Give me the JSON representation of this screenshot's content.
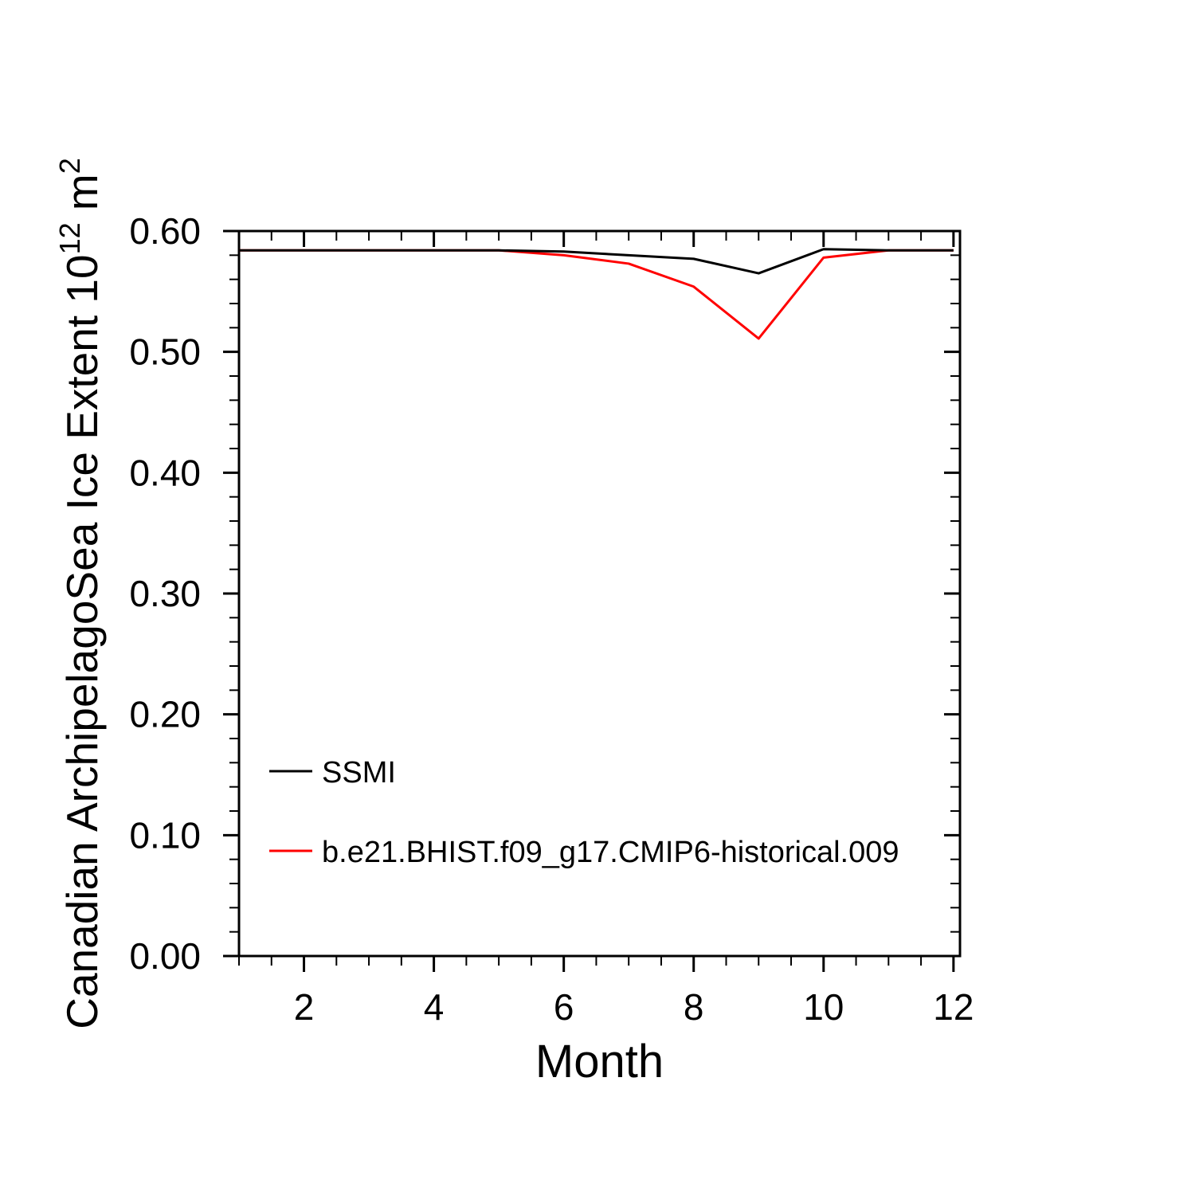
{
  "figure": {
    "background": "#ffffff"
  },
  "chart_data": {
    "type": "line",
    "title": "",
    "xlabel": "Month",
    "ylabel": "Canadian ArchipelagoSea Ice Extent 10¹² m²",
    "ylabel_segments": [
      {
        "text": "Canadian ArchipelagoSea Ice Extent 10",
        "sup": false
      },
      {
        "text": "12",
        "sup": true
      },
      {
        "text": " m",
        "sup": false
      },
      {
        "text": "2",
        "sup": true
      }
    ],
    "x": [
      1,
      2,
      3,
      4,
      5,
      6,
      7,
      8,
      9,
      10,
      11,
      12
    ],
    "series": [
      {
        "name": "SSMI",
        "color": "#000000",
        "values": [
          0.584,
          0.584,
          0.584,
          0.584,
          0.584,
          0.583,
          0.58,
          0.577,
          0.565,
          0.585,
          0.584,
          0.584
        ]
      },
      {
        "name": "b.e21.BHIST.f09_g17.CMIP6-historical.009",
        "color": "#ff0000",
        "values": [
          0.584,
          0.584,
          0.584,
          0.584,
          0.584,
          0.58,
          0.573,
          0.554,
          0.511,
          0.578,
          0.584,
          0.584
        ]
      }
    ],
    "xlim": [
      1,
      12.1
    ],
    "ylim": [
      0,
      0.6
    ],
    "x_major_ticks": [
      2,
      4,
      6,
      8,
      10,
      12
    ],
    "x_tick_labels": [
      "2",
      "4",
      "6",
      "8",
      "10",
      "12"
    ],
    "x_minor_step": 0.5,
    "y_major_ticks": [
      0.0,
      0.1,
      0.2,
      0.3,
      0.4,
      0.5,
      0.6
    ],
    "y_tick_labels": [
      "0.00",
      "0.10",
      "0.20",
      "0.30",
      "0.40",
      "0.50",
      "0.60"
    ],
    "y_minor_step": 0.02,
    "grid": false,
    "legend_position": "lower-left-inside",
    "legend_entries": [
      "SSMI",
      "b.e21.BHIST.f09_g17.CMIP6-historical.009"
    ]
  }
}
